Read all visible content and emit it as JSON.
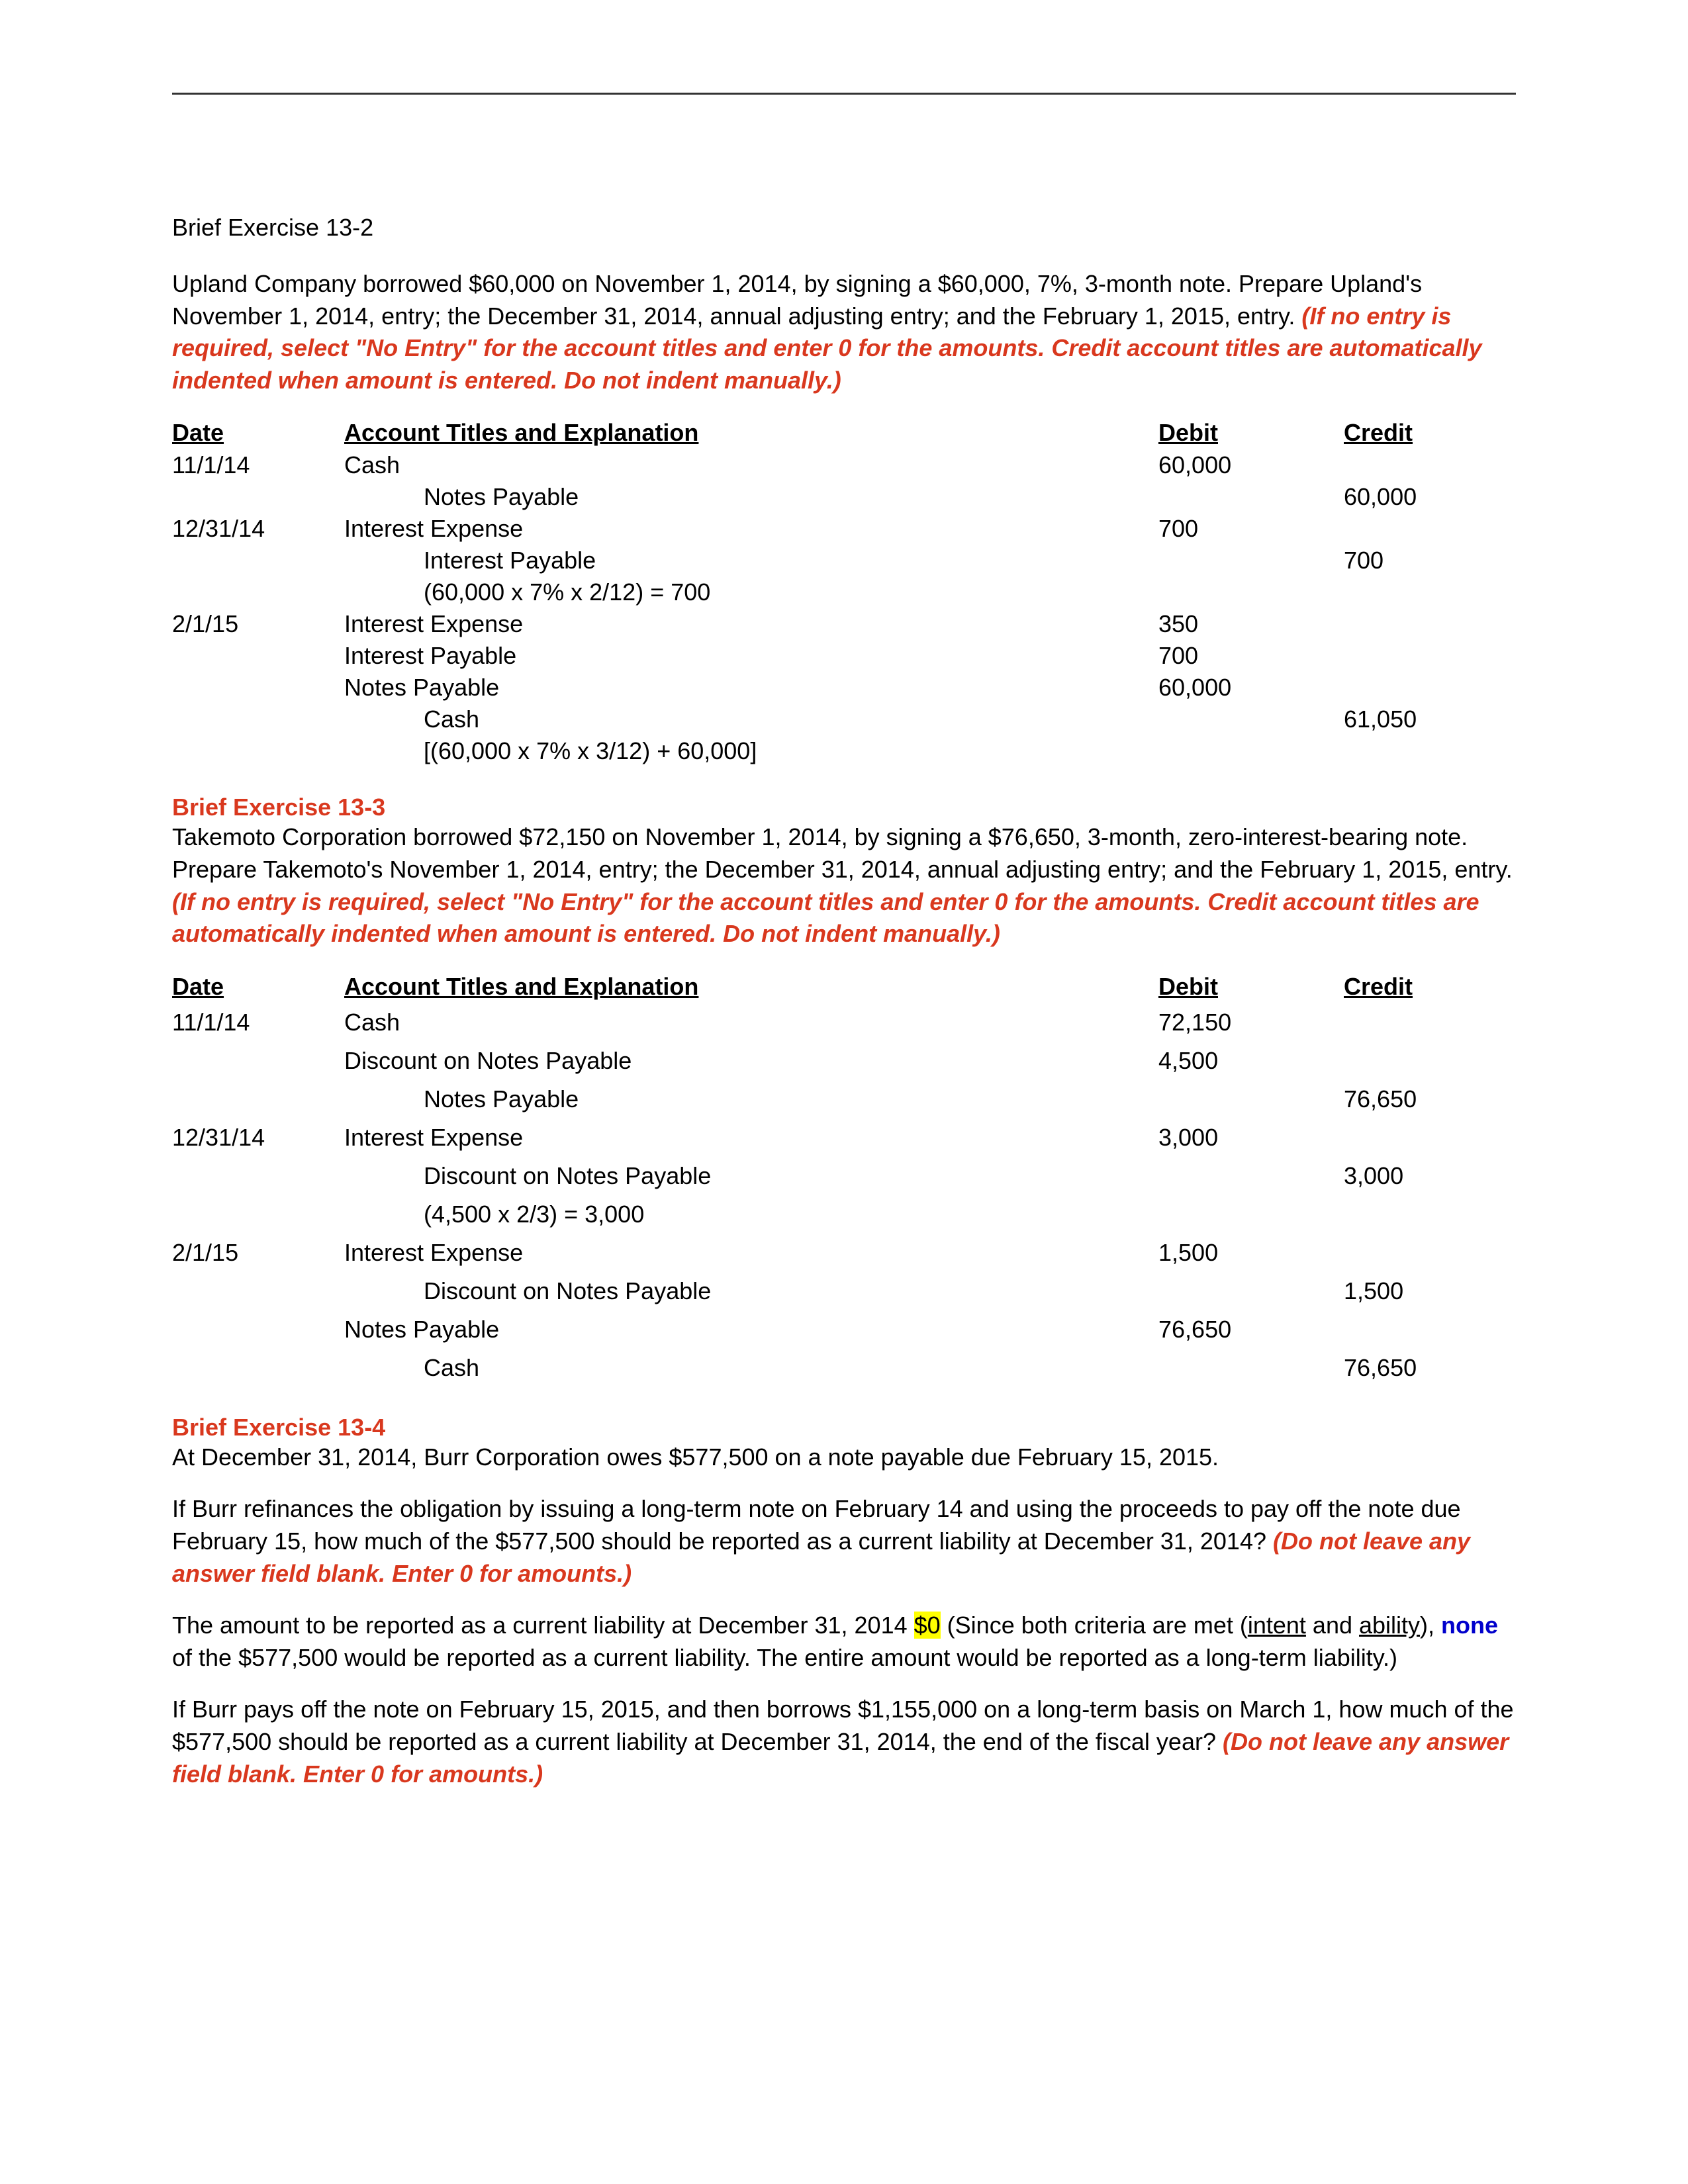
{
  "colors": {
    "text": "#000000",
    "red": "#d9381e",
    "blue": "#0000cc",
    "highlight": "#ffff00",
    "rule": "#333333",
    "background": "#ffffff"
  },
  "ex132": {
    "title": "Brief Exercise 13-2",
    "intro": "Upland Company borrowed $60,000 on November 1, 2014, by signing a $60,000, 7%, 3-month note. Prepare Upland's November 1, 2014, entry; the December 31, 2014, annual adjusting entry; and the February 1, 2015, entry. ",
    "instr": "(If no entry is required, select \"No Entry\" for the account titles and enter 0 for the amounts. Credit account titles are automatically indented when amount is entered. Do not indent manually.)",
    "headers": {
      "date": "Date",
      "acct": "Account Titles and Explanation",
      "debit": "Debit",
      "credit": "Credit"
    },
    "rows": [
      {
        "date": "11/1/14",
        "acct": "Cash",
        "indent": 0,
        "debit": "60,000",
        "credit": ""
      },
      {
        "date": "",
        "acct": "Notes Payable",
        "indent": 1,
        "debit": "",
        "credit": "60,000"
      },
      {
        "date": "12/31/14",
        "acct": "Interest Expense",
        "indent": 0,
        "debit": "700",
        "credit": ""
      },
      {
        "date": "",
        "acct": "Interest Payable",
        "indent": 1,
        "debit": "",
        "credit": "700"
      },
      {
        "date": "",
        "acct": "(60,000 x 7% x 2/12) = 700",
        "indent": 1,
        "debit": "",
        "credit": ""
      },
      {
        "date": "2/1/15",
        "acct": "Interest Expense",
        "indent": 0,
        "debit": "350",
        "credit": ""
      },
      {
        "date": "",
        "acct": "Interest Payable",
        "indent": 0,
        "debit": "700",
        "credit": ""
      },
      {
        "date": "",
        "acct": "Notes Payable",
        "indent": 0,
        "debit": "60,000",
        "credit": ""
      },
      {
        "date": "",
        "acct": "Cash",
        "indent": 1,
        "debit": "",
        "credit": "61,050"
      },
      {
        "date": "",
        "acct": "[(60,000 x 7% x 3/12) + 60,000]",
        "indent": 1,
        "debit": "",
        "credit": ""
      }
    ]
  },
  "ex133": {
    "title": "Brief Exercise 13-3",
    "intro": "Takemoto Corporation borrowed $72,150 on November 1, 2014, by signing a $76,650, 3-month, zero-interest-bearing note. Prepare Takemoto's November 1, 2014, entry; the December 31, 2014, annual adjusting entry; and the February 1, 2015, entry. ",
    "instr": "(If no entry is required, select \"No Entry\" for the account titles and enter 0 for the amounts. Credit account titles are automatically indented when amount is entered. Do not indent manually.)",
    "headers": {
      "date": "Date",
      "acct": "Account Titles and Explanation",
      "debit": "Debit",
      "credit": "Credit"
    },
    "rows": [
      {
        "date": "11/1/14",
        "acct": "Cash",
        "indent": 0,
        "debit": "72,150",
        "credit": ""
      },
      {
        "date": "",
        "acct": "Discount on Notes Payable",
        "indent": 0,
        "debit": "4,500",
        "credit": ""
      },
      {
        "date": "",
        "acct": "Notes Payable",
        "indent": 1,
        "debit": "",
        "credit": "76,650"
      },
      {
        "date": "12/31/14",
        "acct": "Interest Expense",
        "indent": 0,
        "debit": "3,000",
        "credit": ""
      },
      {
        "date": "",
        "acct": "Discount on Notes Payable",
        "indent": 1,
        "debit": "",
        "credit": "3,000"
      },
      {
        "date": "",
        "acct": "(4,500 x 2/3) = 3,000",
        "indent": 1,
        "debit": "",
        "credit": ""
      },
      {
        "date": "2/1/15",
        "acct": "Interest Expense",
        "indent": 0,
        "debit": "1,500",
        "credit": ""
      },
      {
        "date": "",
        "acct": "Discount on Notes Payable",
        "indent": 1,
        "debit": "",
        "credit": "1,500"
      },
      {
        "date": "",
        "acct": "Notes Payable",
        "indent": 0,
        "debit": "76,650",
        "credit": ""
      },
      {
        "date": "",
        "acct": "Cash",
        "indent": 1,
        "debit": "",
        "credit": "76,650"
      }
    ]
  },
  "ex134": {
    "title": "Brief Exercise 13-4",
    "p1": "At December 31, 2014, Burr Corporation owes $577,500 on a note payable due February 15, 2015.",
    "p2": "If Burr refinances the obligation by issuing a long-term note on February 14 and using the proceeds to pay off the note due February 15, how much of the $577,500 should be reported as a current liability at December 31, 2014? ",
    "p2instr": "(Do not leave any answer field blank. Enter 0 for amounts.)",
    "ans_prefix": "The amount to be reported as a current liability at December 31, 2014 ",
    "ans_hl": "$0",
    "ans_mid1": " (Since both criteria are met (",
    "ans_u1": "intent",
    "ans_mid2": " and ",
    "ans_u2": "ability",
    "ans_mid3": "), ",
    "ans_none": "none",
    "ans_suffix": " of the $577,500 would be reported as a current liability. The entire amount would be reported as a long-term liability.)",
    "p3": "If Burr pays off the note on February 15, 2015, and then borrows $1,155,000 on a long-term basis on March 1, how much of the $577,500 should be reported as a current liability at December 31, 2014, the end of the fiscal year? ",
    "p3instr": "(Do not leave any answer field blank. Enter 0 for amounts.)"
  }
}
